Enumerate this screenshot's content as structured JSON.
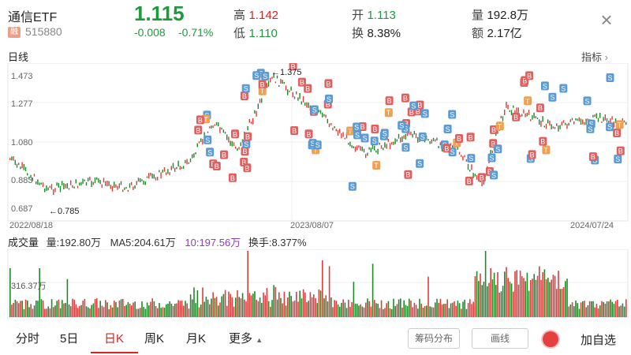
{
  "header": {
    "name": "通信ETF",
    "badge": "融",
    "code": "515880",
    "price": "1.115",
    "change": "-0.008",
    "change_pct": "-0.71%",
    "high_label": "高",
    "high": "1.142",
    "low_label": "低",
    "low": "1.110",
    "open_label": "开",
    "open": "1.113",
    "turnover_label": "换",
    "turnover": "8.38%",
    "volume_label": "量",
    "volume": "192.8万",
    "amount_label": "额",
    "amount": "2.17亿",
    "close_icon": "close-icon"
  },
  "kline": {
    "title": "日线",
    "indicator_label": "指标",
    "y_ticks": [
      "1.473",
      "1.277",
      "1.080",
      "0.883",
      "0.687"
    ],
    "x_ticks": [
      "2022/08/18",
      "2023/08/07",
      "2024/07/24"
    ],
    "max_annot": "←1.375",
    "min_annot": "←0.785",
    "colors": {
      "up": "#e23b3b",
      "down": "#1e8a2a",
      "b_marker": "#e06060",
      "s_marker": "#5b9bd5",
      "t_marker": "#f0a050"
    }
  },
  "volume": {
    "title": "成交量",
    "vol_label": "量:192.80万",
    "ma5_label": "MA5:204.61万",
    "ma10_label": "10:197.56万",
    "turnover_label": "换手:8.377%",
    "y_tick": "316.37万"
  },
  "tabs": [
    "分时",
    "5日",
    "日K",
    "周K",
    "月K",
    "更多"
  ],
  "active_tab": "日K",
  "buttons": {
    "chip": "筹码分布",
    "draw": "画线",
    "add": "加自选"
  }
}
